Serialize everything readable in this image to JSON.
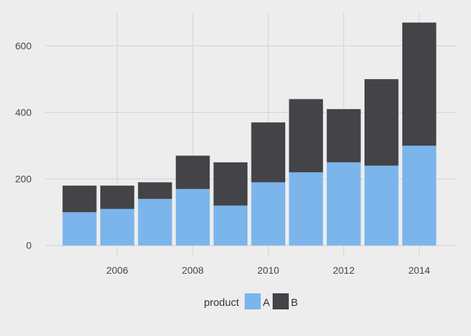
{
  "chart_data": {
    "type": "bar",
    "stacked": true,
    "x": [
      2005,
      2006,
      2007,
      2008,
      2009,
      2010,
      2011,
      2012,
      2013,
      2014
    ],
    "series": [
      {
        "name": "A",
        "values": [
          100,
          110,
          140,
          170,
          120,
          190,
          220,
          250,
          240,
          300
        ],
        "color": "#7cb5ec"
      },
      {
        "name": "B",
        "values": [
          80,
          70,
          50,
          100,
          130,
          180,
          220,
          160,
          260,
          370
        ],
        "color": "#434348"
      }
    ],
    "xticks": [
      2006,
      2008,
      2010,
      2012,
      2014
    ],
    "yticks": [
      0,
      200,
      400,
      600
    ],
    "xlim": [
      2004.1,
      2015.0
    ],
    "ylim": [
      -30,
      700
    ],
    "grid": true,
    "legend": {
      "title": "product",
      "position": "bottom"
    },
    "title": "",
    "xlabel": "",
    "ylabel": ""
  }
}
